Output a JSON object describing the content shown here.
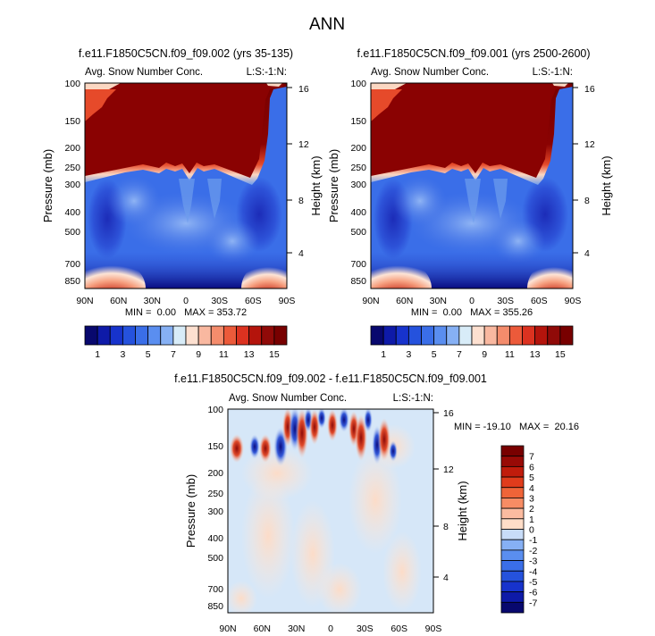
{
  "chart_data": {
    "title": "ANN",
    "panels": [
      {
        "type": "heatmap",
        "title": "f.e11.F1850C5CN.f09_f09.002 (yrs 35-135)",
        "left_label": "Avg. Snow Number Conc.",
        "right_label": "L:S:-1:N:",
        "xlabel": "",
        "ylabel": "Pressure (mb)",
        "ylabel_right": "Height (km)",
        "x_ticks": [
          "90N",
          "60N",
          "30N",
          "0",
          "30S",
          "60S",
          "90S"
        ],
        "y_ticks": [
          "100",
          "150",
          "200",
          "250",
          "300",
          "400",
          "500",
          "700",
          "850"
        ],
        "height_ticks": [
          "16",
          "12",
          "8",
          "4"
        ],
        "stats": "MIN =  0.00   MAX = 353.72"
      },
      {
        "type": "heatmap",
        "title": "f.e11.F1850C5CN.f09_f09.001 (yrs 2500-2600)",
        "left_label": "Avg. Snow Number Conc.",
        "right_label": "L:S:-1:N:",
        "xlabel": "",
        "ylabel": "Pressure (mb)",
        "ylabel_right": "Height (km)",
        "x_ticks": [
          "90N",
          "60N",
          "30N",
          "0",
          "30S",
          "60S",
          "90S"
        ],
        "y_ticks": [
          "100",
          "150",
          "200",
          "250",
          "300",
          "400",
          "500",
          "700",
          "850"
        ],
        "height_ticks": [
          "16",
          "12",
          "8",
          "4"
        ],
        "stats": "MIN =  0.00   MAX = 355.26"
      },
      {
        "type": "heatmap",
        "title": "f.e11.F1850C5CN.f09_f09.002 - f.e11.F1850C5CN.f09_f09.001",
        "left_label": "Avg. Snow Number Conc.",
        "right_label": "L:S:-1:N:",
        "xlabel": "",
        "ylabel": "Pressure (mb)",
        "ylabel_right": "Height (km)",
        "x_ticks": [
          "90N",
          "60N",
          "30N",
          "0",
          "30S",
          "60S",
          "90S"
        ],
        "y_ticks": [
          "100",
          "150",
          "200",
          "250",
          "300",
          "400",
          "500",
          "700",
          "850"
        ],
        "height_ticks": [
          "16",
          "12",
          "8",
          "4"
        ],
        "stats": "MIN = -19.10   MAX =  20.16"
      }
    ],
    "colorbar_top": {
      "orientation": "horizontal",
      "levels": [
        1,
        2,
        3,
        4,
        5,
        6,
        7,
        8,
        9,
        10,
        11,
        12,
        13,
        14,
        15
      ],
      "labels": [
        "1",
        "3",
        "5",
        "7",
        "9",
        "11",
        "13",
        "15"
      ],
      "colors": [
        "#08086e",
        "#0e1aa8",
        "#1733cc",
        "#2552dd",
        "#3a6ee8",
        "#5a8ef0",
        "#86b0f4",
        "#d8ecf8",
        "#fde0d0",
        "#f9b8a0",
        "#f48c6c",
        "#ec5a3a",
        "#dc3220",
        "#b4140c",
        "#900a08",
        "#780000"
      ]
    },
    "colorbar_diff": {
      "orientation": "vertical",
      "levels": [
        -7,
        -6,
        -5,
        -4,
        -3,
        -2,
        -1,
        0,
        1,
        2,
        3,
        4,
        5,
        6,
        7
      ],
      "labels": [
        "7",
        "6",
        "5",
        "4",
        "3",
        "2",
        "1",
        "0",
        "-1",
        "-2",
        "-3",
        "-4",
        "-5",
        "-6",
        "-7"
      ],
      "colors": [
        "#08086e",
        "#0e1aa8",
        "#1733cc",
        "#2552dd",
        "#3a6ee8",
        "#5a8ef0",
        "#86b0f4",
        "#c8dcf8",
        "#ffddc8",
        "#fbbba0",
        "#f78c64",
        "#ef6438",
        "#e03c1c",
        "#c01c0c",
        "#980a06",
        "#780000"
      ]
    }
  }
}
